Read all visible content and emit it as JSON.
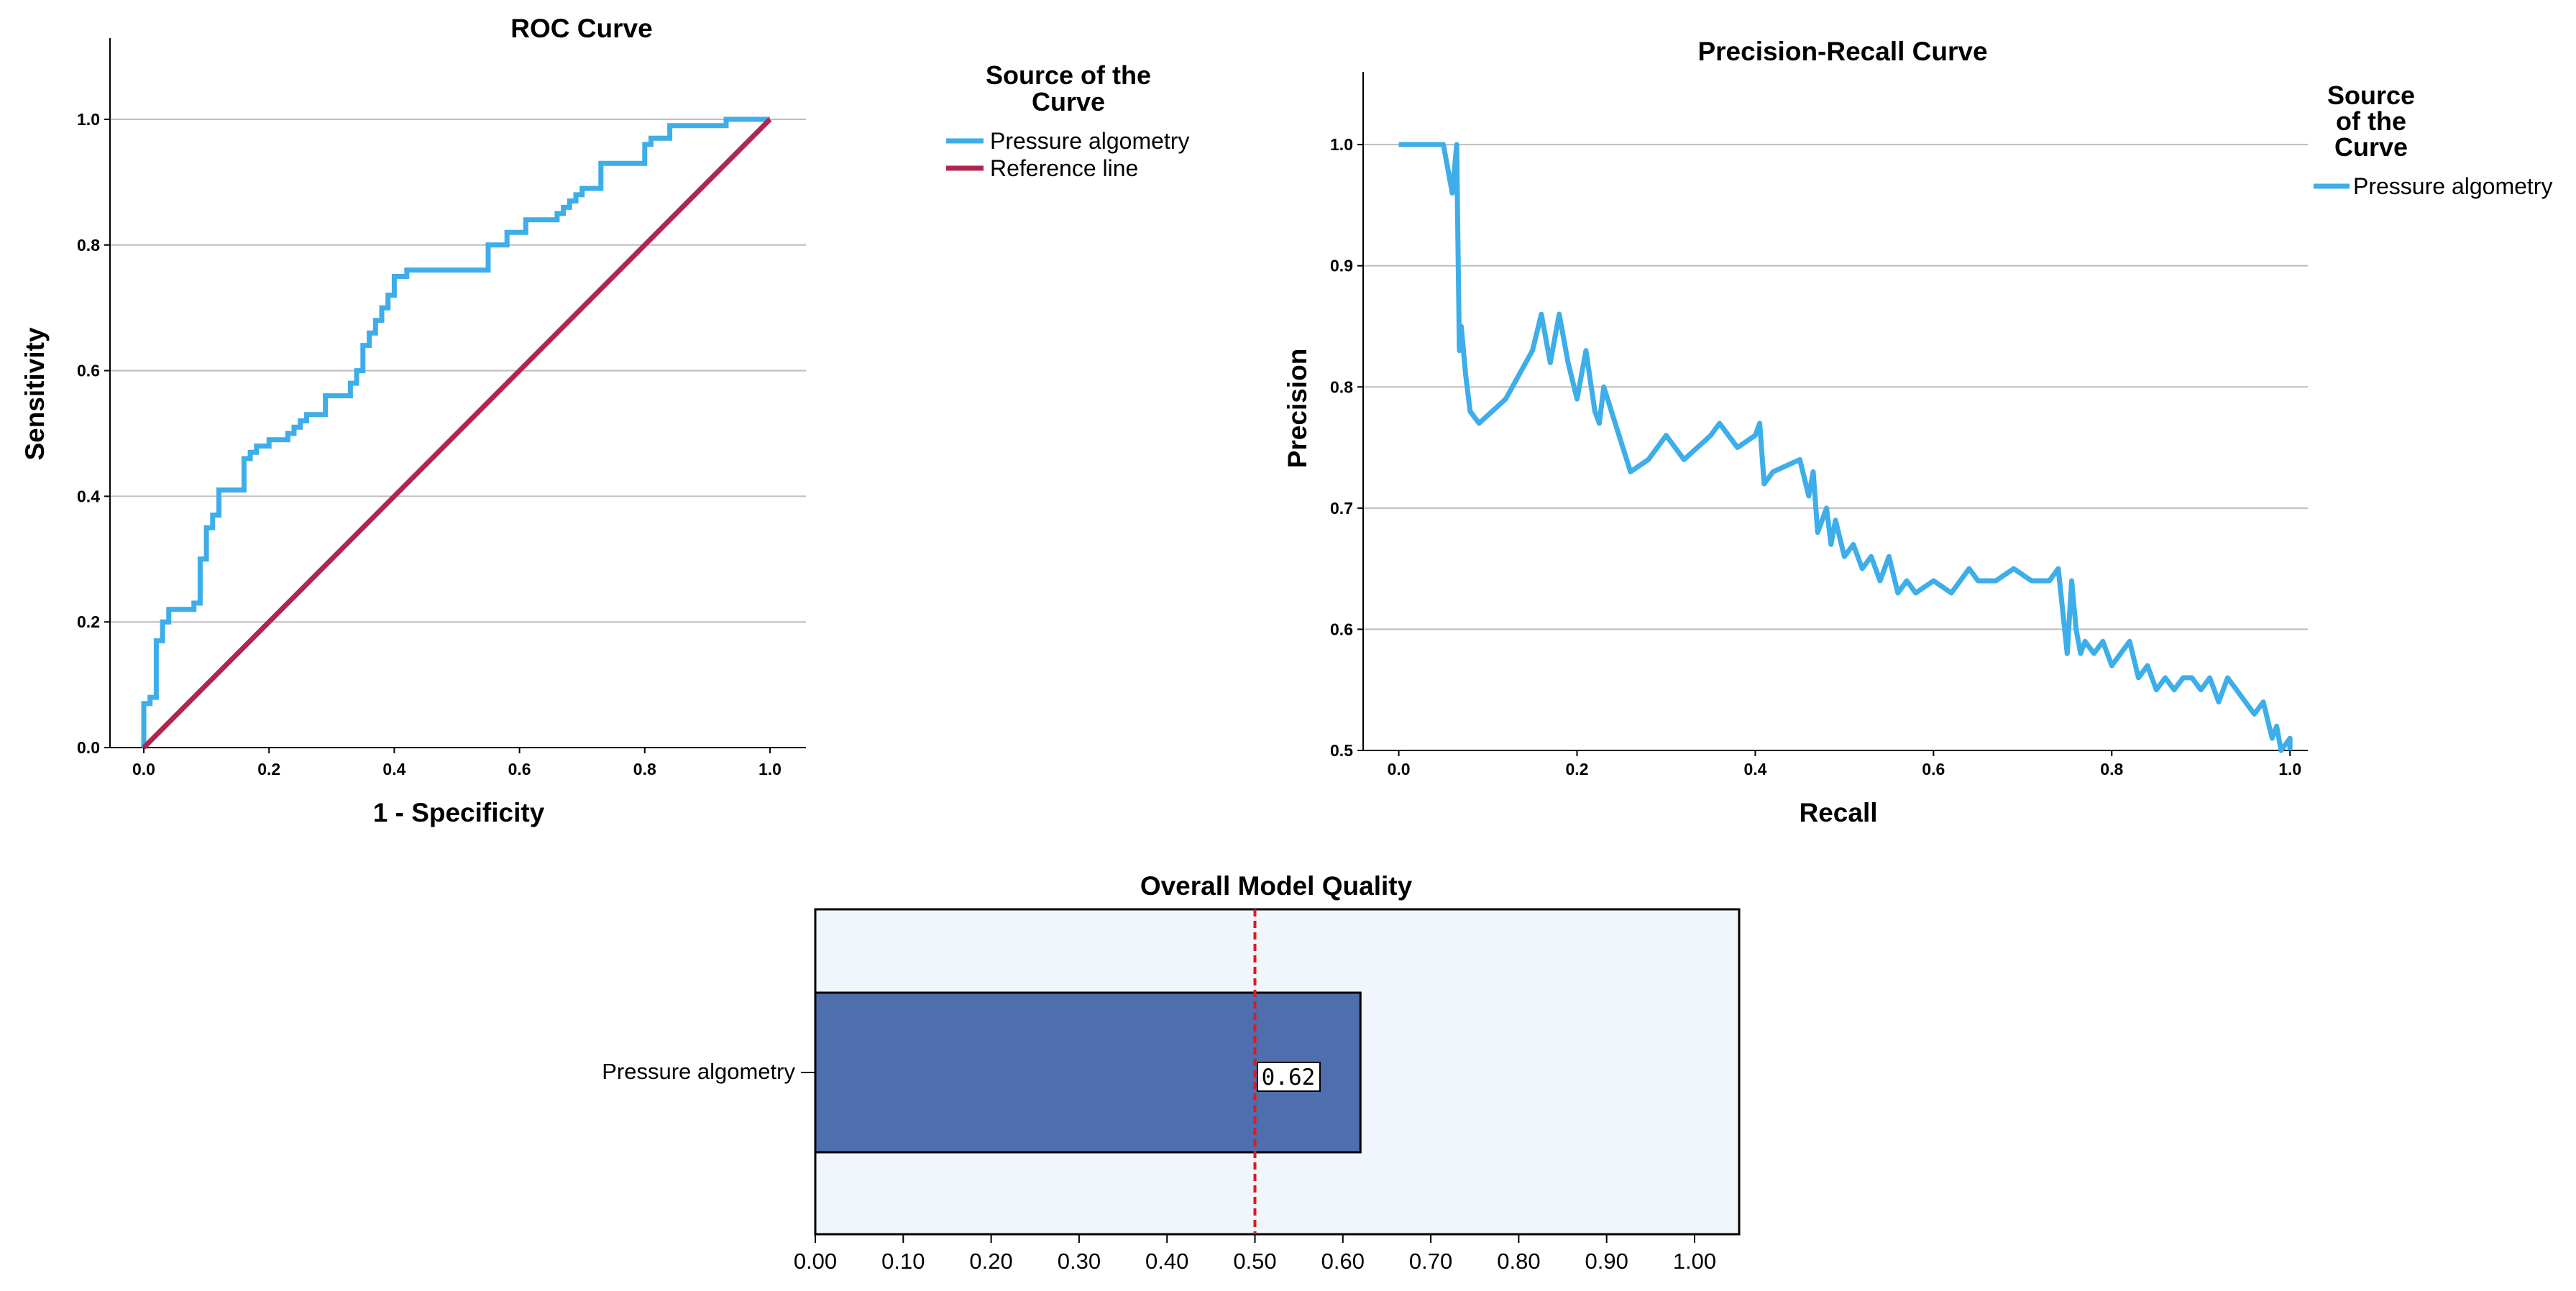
{
  "colors": {
    "curve": "#3daee9",
    "reference": "#b0264f",
    "bar": "#4f6eae",
    "plot_bg": "#f0f6fb",
    "threshold": "#e0191c",
    "grid": "#bdbdbd"
  },
  "chart_data": [
    {
      "type": "line",
      "title": "ROC Curve",
      "xlabel": "1 - Specificity",
      "ylabel": "Sensitivity",
      "xlim": [
        0,
        1
      ],
      "ylim": [
        0,
        1
      ],
      "xticks": [
        "0.0",
        "0.2",
        "0.4",
        "0.6",
        "0.8",
        "1.0"
      ],
      "yticks": [
        "0.0",
        "0.2",
        "0.4",
        "0.6",
        "0.8",
        "1.0"
      ],
      "grid": "horizontal",
      "legend": {
        "title": "Source of the Curve",
        "title_lines": [
          "Source of the",
          "Curve"
        ],
        "placement": "right",
        "entries": [
          "Pressure algometry",
          "Reference line"
        ]
      },
      "series": [
        {
          "name": "Pressure algometry",
          "x": [
            0.0,
            0.0,
            0.01,
            0.01,
            0.02,
            0.02,
            0.03,
            0.03,
            0.04,
            0.04,
            0.05,
            0.05,
            0.06,
            0.06,
            0.08,
            0.08,
            0.09,
            0.09,
            0.1,
            0.1,
            0.11,
            0.11,
            0.12,
            0.12,
            0.16,
            0.16,
            0.17,
            0.17,
            0.18,
            0.18,
            0.2,
            0.2,
            0.23,
            0.23,
            0.24,
            0.24,
            0.25,
            0.25,
            0.26,
            0.26,
            0.29,
            0.29,
            0.33,
            0.33,
            0.34,
            0.34,
            0.35,
            0.35,
            0.36,
            0.36,
            0.37,
            0.37,
            0.38,
            0.38,
            0.39,
            0.39,
            0.4,
            0.4,
            0.42,
            0.42,
            0.55,
            0.55,
            0.58,
            0.58,
            0.61,
            0.61,
            0.66,
            0.66,
            0.67,
            0.67,
            0.68,
            0.68,
            0.69,
            0.69,
            0.7,
            0.7,
            0.73,
            0.73,
            0.8,
            0.8,
            0.81,
            0.81,
            0.84,
            0.84,
            0.93,
            0.93,
            0.99,
            1.0
          ],
          "y": [
            0.0,
            0.07,
            0.07,
            0.08,
            0.08,
            0.17,
            0.17,
            0.2,
            0.2,
            0.22,
            0.22,
            0.22,
            0.22,
            0.22,
            0.22,
            0.23,
            0.23,
            0.3,
            0.3,
            0.35,
            0.35,
            0.37,
            0.37,
            0.41,
            0.41,
            0.46,
            0.46,
            0.47,
            0.47,
            0.48,
            0.48,
            0.49,
            0.49,
            0.5,
            0.5,
            0.51,
            0.51,
            0.52,
            0.52,
            0.53,
            0.53,
            0.56,
            0.56,
            0.58,
            0.58,
            0.6,
            0.6,
            0.64,
            0.64,
            0.66,
            0.66,
            0.68,
            0.68,
            0.7,
            0.7,
            0.72,
            0.72,
            0.75,
            0.75,
            0.76,
            0.76,
            0.8,
            0.8,
            0.82,
            0.82,
            0.84,
            0.84,
            0.85,
            0.85,
            0.86,
            0.86,
            0.87,
            0.87,
            0.88,
            0.88,
            0.89,
            0.89,
            0.93,
            0.93,
            0.96,
            0.96,
            0.97,
            0.97,
            0.99,
            0.99,
            1.0,
            1.0,
            1.0
          ]
        },
        {
          "name": "Reference line",
          "x": [
            0,
            1
          ],
          "y": [
            0,
            1
          ]
        }
      ]
    },
    {
      "type": "line",
      "title": "Precision-Recall Curve",
      "xlabel": "Recall",
      "ylabel": "Precision",
      "xlim": [
        -0.04,
        1.02
      ],
      "ylim": [
        0.5,
        1.06
      ],
      "xticks": [
        "0.0",
        "0.2",
        "0.4",
        "0.6",
        "0.8",
        "1.0"
      ],
      "yticks": [
        "0.5",
        "0.6",
        "0.7",
        "0.8",
        "0.9",
        "1.0"
      ],
      "grid": "horizontal",
      "legend": {
        "title": "Source of the Curve",
        "title_lines": [
          "Source",
          "of the",
          "Curve"
        ],
        "placement": "right",
        "entries": [
          "Pressure algometry"
        ]
      },
      "series": [
        {
          "name": "Pressure algometry",
          "x": [
            0.0,
            0.05,
            0.06,
            0.065,
            0.066,
            0.068,
            0.07,
            0.075,
            0.08,
            0.09,
            0.12,
            0.15,
            0.16,
            0.17,
            0.18,
            0.19,
            0.2,
            0.21,
            0.22,
            0.225,
            0.23,
            0.26,
            0.28,
            0.3,
            0.31,
            0.32,
            0.35,
            0.36,
            0.38,
            0.4,
            0.405,
            0.41,
            0.42,
            0.45,
            0.46,
            0.465,
            0.47,
            0.48,
            0.485,
            0.49,
            0.5,
            0.51,
            0.52,
            0.53,
            0.54,
            0.55,
            0.56,
            0.57,
            0.58,
            0.6,
            0.62,
            0.64,
            0.65,
            0.67,
            0.69,
            0.71,
            0.73,
            0.74,
            0.75,
            0.755,
            0.76,
            0.765,
            0.77,
            0.78,
            0.79,
            0.8,
            0.81,
            0.82,
            0.83,
            0.84,
            0.85,
            0.86,
            0.87,
            0.88,
            0.89,
            0.9,
            0.91,
            0.92,
            0.93,
            0.94,
            0.95,
            0.96,
            0.97,
            0.98,
            0.985,
            0.99,
            1.0,
            1.0
          ],
          "y": [
            1.0,
            1.0,
            0.96,
            1.0,
            0.94,
            0.83,
            0.85,
            0.81,
            0.78,
            0.77,
            0.79,
            0.83,
            0.86,
            0.82,
            0.86,
            0.82,
            0.79,
            0.83,
            0.78,
            0.77,
            0.8,
            0.73,
            0.74,
            0.76,
            0.75,
            0.74,
            0.76,
            0.77,
            0.75,
            0.76,
            0.77,
            0.72,
            0.73,
            0.74,
            0.71,
            0.73,
            0.68,
            0.7,
            0.67,
            0.69,
            0.66,
            0.67,
            0.65,
            0.66,
            0.64,
            0.66,
            0.63,
            0.64,
            0.63,
            0.64,
            0.63,
            0.65,
            0.64,
            0.64,
            0.65,
            0.64,
            0.64,
            0.65,
            0.58,
            0.64,
            0.6,
            0.58,
            0.59,
            0.58,
            0.59,
            0.57,
            0.58,
            0.59,
            0.56,
            0.57,
            0.55,
            0.56,
            0.55,
            0.56,
            0.56,
            0.55,
            0.56,
            0.54,
            0.56,
            0.55,
            0.54,
            0.53,
            0.54,
            0.51,
            0.52,
            0.5,
            0.51,
            0.5
          ]
        }
      ]
    },
    {
      "type": "bar",
      "title": "Overall Model Quality",
      "orientation": "horizontal",
      "categories": [
        "Pressure algometry"
      ],
      "values": [
        0.62
      ],
      "value_labels": [
        "0.62"
      ],
      "xlim": [
        0,
        1.05
      ],
      "xticks": [
        "0.00",
        "0.10",
        "0.20",
        "0.30",
        "0.40",
        "0.50",
        "0.60",
        "0.70",
        "0.80",
        "0.90",
        "1.00"
      ],
      "reference_line": 0.5,
      "grid": "none"
    }
  ]
}
